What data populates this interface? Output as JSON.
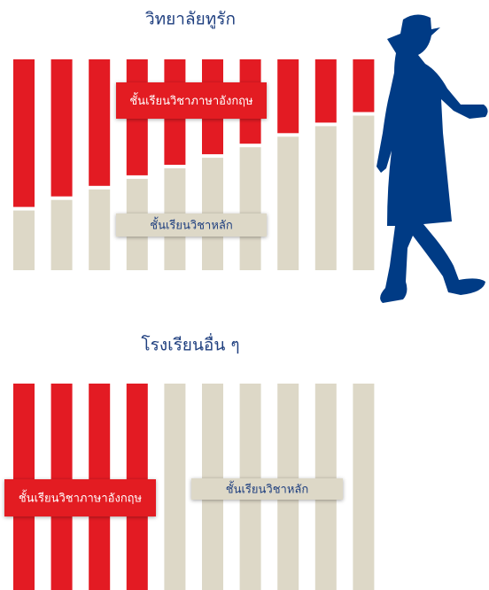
{
  "chart_data": [
    {
      "type": "stacked-bar",
      "title": "วิทยาลัยทูรัก",
      "categories": [
        null,
        null,
        null,
        null,
        null,
        null,
        null,
        null,
        null,
        null
      ],
      "series": [
        {
          "name": "ชั้นเรียนวิชาหลัก",
          "color": "#ddd8c7",
          "values": [
            30,
            35,
            40,
            45,
            50,
            55,
            60,
            65,
            70,
            75
          ]
        },
        {
          "name": "ชั้นเรียนวิชาภาษาอังกฤษ",
          "color": "#e31b23",
          "values": [
            70,
            65,
            60,
            55,
            50,
            45,
            40,
            35,
            30,
            25
          ]
        }
      ],
      "ylim": [
        0,
        100
      ]
    },
    {
      "type": "stacked-bar",
      "title": "โรงเรียนอื่น ๆ",
      "categories": [
        null,
        null,
        null,
        null,
        null,
        null,
        null,
        null,
        null,
        null
      ],
      "series": [
        {
          "name": "ชั้นเรียนวิชาหลัก",
          "color": "#ddd8c7",
          "values": [
            0,
            0,
            0,
            0,
            100,
            100,
            100,
            100,
            100,
            100
          ]
        },
        {
          "name": "ชั้นเรียนวิชาภาษาอังกฤษ",
          "color": "#e31b23",
          "values": [
            100,
            100,
            100,
            100,
            0,
            0,
            0,
            0,
            0,
            0
          ]
        }
      ],
      "ylim": [
        0,
        100
      ]
    }
  ]
}
